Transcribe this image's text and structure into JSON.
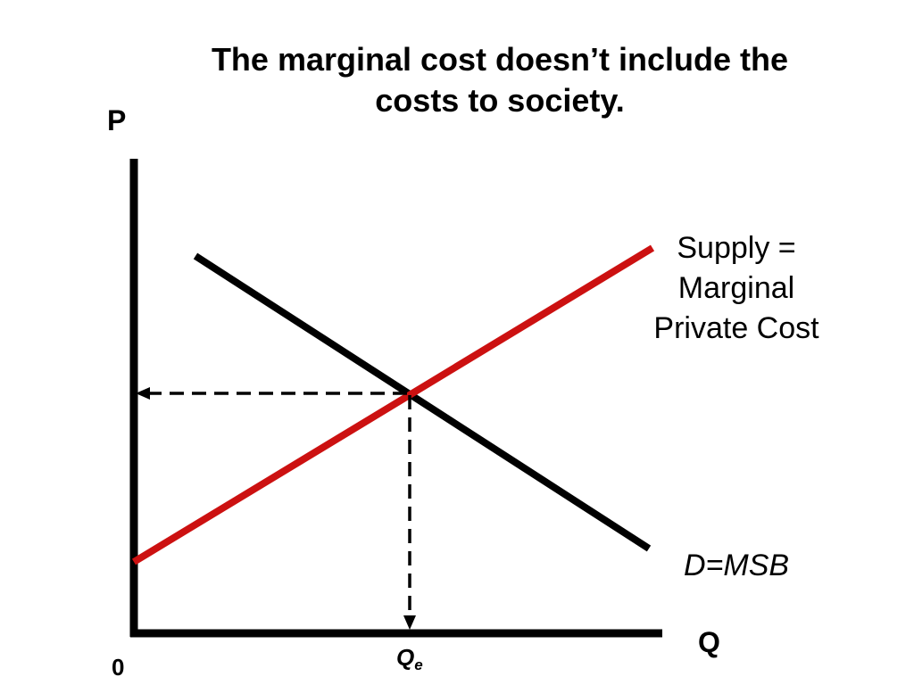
{
  "title": "The marginal cost doesn’t include the\ncosts to society.",
  "axes": {
    "y_label": "P",
    "x_label": "Q",
    "origin_label": "0"
  },
  "curves": {
    "supply": {
      "label": "Supply =\nMarginal\nPrivate Cost",
      "color": "#cc1111"
    },
    "demand": {
      "label": "D=MSB",
      "color": "#000000"
    }
  },
  "equilibrium": {
    "quantity_label": "Q",
    "quantity_subscript": "e"
  }
}
